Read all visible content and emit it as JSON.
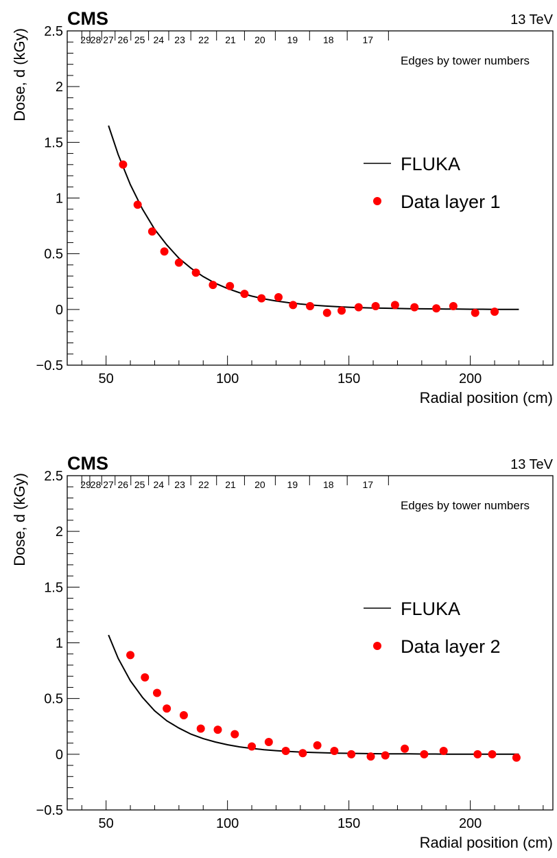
{
  "chart_data": [
    {
      "type": "scatter",
      "experiment": "CMS",
      "energy": "13 TeV",
      "xlabel": "Radial position (cm)",
      "ylabel": "Dose, d (kGy)",
      "xlim": [
        34,
        234
      ],
      "ylim": [
        -0.5,
        2.5
      ],
      "x_ticks": [
        "50",
        "100",
        "150",
        "200"
      ],
      "y_ticks": [
        "−0.5",
        "0",
        "0.5",
        "1",
        "1.5",
        "2",
        "2.5"
      ],
      "grid": false,
      "legend_position": "right-middle",
      "tower_axis": {
        "title": "Edges by tower numbers",
        "labels": [
          "29",
          "28",
          "27",
          "26",
          "25",
          "24",
          "23",
          "22",
          "21",
          "20",
          "19",
          "18",
          "17"
        ],
        "edges": [
          40,
          43.3,
          48.2,
          53.7,
          60.2,
          67.5,
          75.8,
          84.9,
          95.5,
          107,
          119.7,
          133.8,
          149.3,
          166.3
        ]
      },
      "series": [
        {
          "name": "FLUKA",
          "kind": "curve",
          "color": "#000000",
          "x": [
            51,
            55,
            60,
            65,
            70,
            75,
            80,
            85,
            90,
            95,
            100,
            105,
            110,
            115,
            120,
            125,
            130,
            135,
            140,
            145,
            150,
            155,
            160,
            165,
            170,
            175,
            180,
            185,
            190,
            195,
            200,
            205,
            210,
            215,
            220
          ],
          "y": [
            1.65,
            1.39,
            1.12,
            0.9,
            0.72,
            0.58,
            0.46,
            0.37,
            0.295,
            0.235,
            0.188,
            0.15,
            0.12,
            0.095,
            0.076,
            0.061,
            0.049,
            0.039,
            0.031,
            0.025,
            0.02,
            0.016,
            0.013,
            0.011,
            0.009,
            0.007,
            0.006,
            0.005,
            0.004,
            0.003,
            0.002,
            0.002,
            0.001,
            0.001,
            0.001
          ]
        },
        {
          "name": "Data layer 1",
          "kind": "points",
          "color": "#ff0000",
          "x": [
            57,
            63,
            69,
            74,
            80,
            87,
            94,
            101,
            107,
            114,
            121,
            127,
            134,
            141,
            147,
            154,
            161,
            169,
            177,
            186,
            193,
            202,
            210
          ],
          "y": [
            1.3,
            0.94,
            0.7,
            0.52,
            0.42,
            0.33,
            0.22,
            0.21,
            0.14,
            0.1,
            0.11,
            0.04,
            0.03,
            -0.03,
            -0.01,
            0.02,
            0.03,
            0.04,
            0.02,
            0.01,
            0.03,
            -0.03,
            -0.02
          ]
        }
      ]
    },
    {
      "type": "scatter",
      "experiment": "CMS",
      "energy": "13 TeV",
      "xlabel": "Radial position (cm)",
      "ylabel": "Dose, d (kGy)",
      "xlim": [
        34,
        234
      ],
      "ylim": [
        -0.5,
        2.5
      ],
      "x_ticks": [
        "50",
        "100",
        "150",
        "200"
      ],
      "y_ticks": [
        "−0.5",
        "0",
        "0.5",
        "1",
        "1.5",
        "2",
        "2.5"
      ],
      "grid": false,
      "legend_position": "right-middle",
      "tower_axis": {
        "title": "Edges by tower numbers",
        "labels": [
          "29",
          "28",
          "27",
          "26",
          "25",
          "24",
          "23",
          "22",
          "21",
          "20",
          "19",
          "18",
          "17"
        ],
        "edges": [
          40,
          43.3,
          48.2,
          53.7,
          60.2,
          67.5,
          75.8,
          84.9,
          95.5,
          107,
          119.7,
          133.8,
          149.3,
          166.3
        ]
      },
      "series": [
        {
          "name": "FLUKA",
          "kind": "curve",
          "color": "#000000",
          "x": [
            51,
            55,
            60,
            65,
            70,
            75,
            80,
            85,
            90,
            95,
            100,
            105,
            110,
            115,
            120,
            125,
            130,
            135,
            140,
            145,
            150,
            155,
            160,
            165,
            170,
            175,
            180,
            185,
            190,
            195,
            200,
            205,
            210,
            215,
            220
          ],
          "y": [
            1.07,
            0.86,
            0.66,
            0.51,
            0.39,
            0.3,
            0.235,
            0.18,
            0.14,
            0.11,
            0.085,
            0.066,
            0.052,
            0.041,
            0.032,
            0.025,
            0.02,
            0.016,
            0.013,
            0.01,
            0.008,
            0.007,
            0.005,
            0.004,
            0.003,
            0.003,
            0.002,
            0.002,
            0.001,
            0.001,
            0.001,
            0.001,
            0.0,
            0.0,
            0.0
          ]
        },
        {
          "name": "Data layer 2",
          "kind": "points",
          "color": "#ff0000",
          "x": [
            60,
            66,
            71,
            75,
            82,
            89,
            96,
            103,
            110,
            117,
            124,
            131,
            137,
            144,
            151,
            159,
            165,
            173,
            181,
            189,
            203,
            209,
            219
          ],
          "y": [
            0.89,
            0.69,
            0.55,
            0.41,
            0.35,
            0.23,
            0.22,
            0.18,
            0.07,
            0.11,
            0.03,
            0.01,
            0.08,
            0.03,
            0.0,
            -0.02,
            -0.01,
            0.05,
            0.0,
            0.03,
            0.0,
            0.0,
            -0.03
          ]
        }
      ]
    }
  ]
}
